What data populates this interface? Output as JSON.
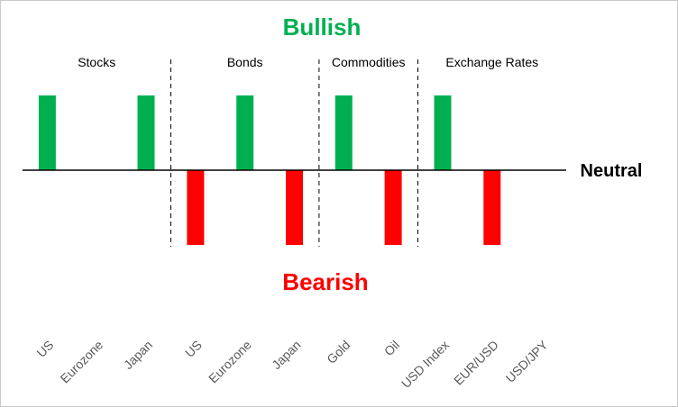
{
  "chart_data": {
    "type": "bar",
    "title_top": "Bullish",
    "title_bottom": "Bearish",
    "baseline_label": "Neutral",
    "categories": [
      "US",
      "Eurozone",
      "Japan",
      "US",
      "Eurozone",
      "Japan",
      "Gold",
      "Oil",
      "USD Index",
      "EUR/USD",
      "USD/JPY"
    ],
    "values": [
      1,
      0,
      1,
      -1,
      1,
      -1,
      1,
      -1,
      1,
      -1,
      0
    ],
    "ylim": [
      -1,
      1
    ],
    "groups": [
      {
        "label": "Stocks",
        "start": 0,
        "end": 2
      },
      {
        "label": "Bonds",
        "start": 3,
        "end": 5
      },
      {
        "label": "Commodities",
        "start": 6,
        "end": 7
      },
      {
        "label": "Exchange Rates",
        "start": 8,
        "end": 10
      }
    ],
    "colors": {
      "bullish": "#00B050",
      "bearish": "#FF0000",
      "axis": "#000000",
      "divider": "#000000",
      "tick": "#595959"
    },
    "grid": false,
    "legend": "none"
  }
}
